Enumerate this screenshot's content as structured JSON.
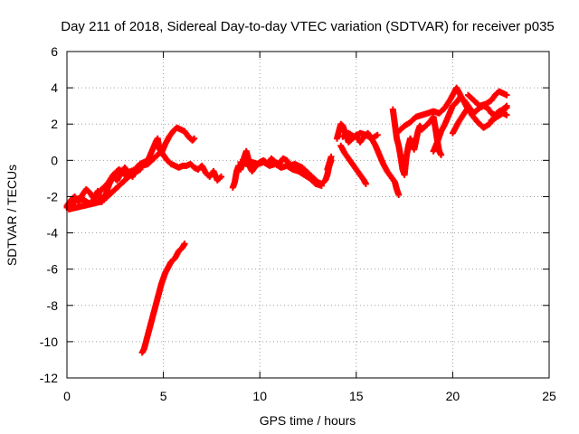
{
  "chart_data": {
    "type": "scatter",
    "title": "Day 211 of 2018, Sidereal Day-to-day VTEC variation (SDTVAR) for receiver p035",
    "xlabel": "GPS time / hours",
    "ylabel": "SDTVAR / TECUs",
    "xlim": [
      0,
      25
    ],
    "ylim": [
      -12,
      6
    ],
    "xticks": [
      0,
      5,
      10,
      15,
      20,
      25
    ],
    "yticks": [
      -12,
      -10,
      -8,
      -6,
      -4,
      -2,
      0,
      2,
      4,
      6
    ],
    "xtick_labels": [
      "0",
      "5",
      "10",
      "15",
      "20",
      "25"
    ],
    "ytick_labels": [
      "-12",
      "-10",
      "-8",
      "-6",
      "-4",
      "-2",
      "0",
      "2",
      "4",
      "6"
    ],
    "grid": true,
    "marker": "plus",
    "color": "#ff0000",
    "series": [
      {
        "name": "p035",
        "segments": [
          [
            [
              0.0,
              -2.5
            ],
            [
              0.2,
              -2.2
            ],
            [
              0.4,
              -2.0
            ],
            [
              0.6,
              -2.3
            ],
            [
              0.8,
              -1.9
            ],
            [
              1.0,
              -1.6
            ],
            [
              1.2,
              -1.8
            ],
            [
              1.4,
              -2.1
            ],
            [
              1.6,
              -1.7
            ],
            [
              1.8,
              -2.3
            ],
            [
              2.0,
              -1.9
            ],
            [
              2.2,
              -1.3
            ],
            [
              2.4,
              -0.9
            ],
            [
              2.6,
              -1.1
            ],
            [
              2.8,
              -0.7
            ],
            [
              3.0,
              -0.4
            ],
            [
              3.2,
              -0.7
            ],
            [
              3.4,
              -0.9
            ],
            [
              3.6,
              -0.4
            ],
            [
              3.8,
              -0.2
            ],
            [
              4.0,
              -0.1
            ],
            [
              4.2,
              0.0
            ],
            [
              4.4,
              0.5
            ],
            [
              4.6,
              1.0
            ],
            [
              4.7,
              1.2
            ],
            [
              4.8,
              0.6
            ],
            [
              5.0,
              0.3
            ],
            [
              5.2,
              0.0
            ],
            [
              5.4,
              -0.2
            ],
            [
              5.6,
              -0.3
            ],
            [
              5.8,
              -0.4
            ],
            [
              6.0,
              -0.3
            ],
            [
              6.2,
              -0.3
            ],
            [
              6.4,
              -0.2
            ],
            [
              6.6,
              -0.4
            ],
            [
              6.8,
              -0.5
            ],
            [
              7.0,
              -0.3
            ],
            [
              7.2,
              -0.7
            ],
            [
              7.4,
              -0.9
            ],
            [
              7.6,
              -0.6
            ],
            [
              7.8,
              -1.1
            ],
            [
              8.0,
              -0.9
            ]
          ],
          [
            [
              0.0,
              -2.6
            ],
            [
              0.3,
              -2.4
            ],
            [
              0.6,
              -2.1
            ],
            [
              0.9,
              -2.2
            ],
            [
              1.2,
              -2.4
            ],
            [
              1.5,
              -2.0
            ],
            [
              1.8,
              -1.6
            ],
            [
              2.1,
              -1.3
            ],
            [
              2.4,
              -0.8
            ],
            [
              2.7,
              -0.5
            ],
            [
              3.0,
              -0.8
            ],
            [
              3.3,
              -0.6
            ],
            [
              3.6,
              -0.5
            ],
            [
              3.9,
              -0.3
            ],
            [
              4.2,
              -0.2
            ],
            [
              4.5,
              0.1
            ],
            [
              4.8,
              0.4
            ]
          ],
          [
            [
              0.1,
              -2.7
            ],
            [
              0.5,
              -2.6
            ],
            [
              0.9,
              -2.5
            ],
            [
              1.3,
              -2.4
            ],
            [
              1.7,
              -2.3
            ],
            [
              2.0,
              -2.1
            ],
            [
              2.3,
              -1.8
            ],
            [
              2.6,
              -1.5
            ],
            [
              2.9,
              -1.2
            ],
            [
              3.2,
              -0.9
            ],
            [
              3.5,
              -0.7
            ],
            [
              3.8,
              -0.5
            ]
          ],
          [
            [
              4.9,
              0.4
            ],
            [
              5.1,
              0.9
            ],
            [
              5.3,
              1.3
            ],
            [
              5.5,
              1.6
            ],
            [
              5.7,
              1.8
            ],
            [
              5.9,
              1.7
            ],
            [
              6.1,
              1.6
            ],
            [
              6.3,
              1.3
            ],
            [
              6.5,
              1.1
            ],
            [
              6.6,
              1.2
            ]
          ],
          [
            [
              3.9,
              -10.6
            ],
            [
              4.0,
              -10.4
            ],
            [
              4.1,
              -10.0
            ],
            [
              4.2,
              -9.6
            ],
            [
              4.3,
              -9.2
            ],
            [
              4.4,
              -8.8
            ],
            [
              4.5,
              -8.4
            ],
            [
              4.6,
              -8.0
            ],
            [
              4.7,
              -7.6
            ],
            [
              4.8,
              -7.2
            ],
            [
              4.9,
              -6.8
            ],
            [
              5.0,
              -6.5
            ],
            [
              5.1,
              -6.2
            ],
            [
              5.2,
              -6.0
            ],
            [
              5.3,
              -5.8
            ],
            [
              5.4,
              -5.6
            ],
            [
              5.6,
              -5.4
            ],
            [
              5.8,
              -5.0
            ],
            [
              6.0,
              -4.8
            ],
            [
              6.1,
              -4.6
            ]
          ],
          [
            [
              8.6,
              -1.5
            ],
            [
              8.7,
              -1.2
            ],
            [
              8.8,
              -0.6
            ],
            [
              8.9,
              -0.3
            ],
            [
              9.0,
              -0.5
            ],
            [
              9.1,
              -0.2
            ],
            [
              9.2,
              0.2
            ],
            [
              9.3,
              0.5
            ],
            [
              9.4,
              0.1
            ],
            [
              9.5,
              -0.4
            ],
            [
              9.6,
              -0.6
            ],
            [
              9.8,
              -0.3
            ],
            [
              10.0,
              -0.1
            ],
            [
              10.2,
              0.0
            ],
            [
              10.4,
              -0.2
            ],
            [
              10.6,
              0.1
            ],
            [
              10.8,
              -0.1
            ],
            [
              11.0,
              -0.2
            ],
            [
              11.2,
              0.1
            ],
            [
              11.4,
              0.0
            ],
            [
              11.6,
              -0.3
            ],
            [
              11.8,
              -0.2
            ],
            [
              12.0,
              -0.3
            ],
            [
              12.2,
              -0.4
            ],
            [
              12.4,
              -0.6
            ],
            [
              12.6,
              -0.8
            ],
            [
              12.8,
              -1.0
            ],
            [
              13.0,
              -1.2
            ],
            [
              13.2,
              -1.3
            ],
            [
              13.4,
              -1.1
            ],
            [
              13.5,
              -0.8
            ],
            [
              13.6,
              -0.3
            ],
            [
              13.7,
              0.0
            ]
          ],
          [
            [
              9.0,
              -0.1
            ],
            [
              9.3,
              -0.2
            ],
            [
              9.6,
              -0.1
            ],
            [
              9.9,
              -0.2
            ],
            [
              10.2,
              -0.1
            ],
            [
              10.5,
              -0.3
            ],
            [
              10.8,
              -0.2
            ],
            [
              11.1,
              -0.4
            ],
            [
              11.4,
              -0.3
            ],
            [
              11.7,
              -0.5
            ],
            [
              12.0,
              -0.6
            ],
            [
              12.3,
              -0.8
            ],
            [
              12.6,
              -1.0
            ],
            [
              12.9,
              -1.3
            ],
            [
              13.2,
              -1.4
            ]
          ],
          [
            [
              13.5,
              -0.5
            ],
            [
              13.7,
              0.2
            ]
          ],
          [
            [
              14.0,
              1.2
            ],
            [
              14.1,
              1.6
            ],
            [
              14.2,
              2.0
            ],
            [
              14.3,
              1.9
            ],
            [
              14.4,
              1.6
            ],
            [
              14.5,
              1.3
            ],
            [
              14.6,
              1.0
            ],
            [
              14.8,
              1.2
            ],
            [
              15.0,
              1.4
            ],
            [
              15.2,
              1.0
            ],
            [
              15.4,
              1.3
            ],
            [
              15.6,
              1.5
            ],
            [
              15.8,
              1.2
            ],
            [
              16.0,
              0.8
            ],
            [
              16.2,
              0.3
            ],
            [
              16.4,
              -0.2
            ],
            [
              16.6,
              -0.6
            ],
            [
              16.8,
              -0.9
            ],
            [
              17.0,
              -1.2
            ],
            [
              17.1,
              -1.6
            ],
            [
              17.2,
              -1.9
            ]
          ],
          [
            [
              14.2,
              0.8
            ],
            [
              14.4,
              0.4
            ],
            [
              14.6,
              0.1
            ],
            [
              14.8,
              -0.2
            ],
            [
              15.0,
              -0.5
            ],
            [
              15.2,
              -0.8
            ],
            [
              15.4,
              -1.1
            ],
            [
              15.5,
              -1.3
            ]
          ],
          [
            [
              14.3,
              1.3
            ],
            [
              14.6,
              1.5
            ],
            [
              14.9,
              1.3
            ],
            [
              15.2,
              1.5
            ],
            [
              15.5,
              1.4
            ],
            [
              15.8,
              1.2
            ],
            [
              16.1,
              1.4
            ]
          ],
          [
            [
              16.9,
              2.8
            ],
            [
              17.0,
              2.0
            ],
            [
              17.1,
              1.2
            ],
            [
              17.2,
              0.8
            ],
            [
              17.3,
              0.2
            ],
            [
              17.4,
              -0.5
            ],
            [
              17.5,
              -0.8
            ],
            [
              17.6,
              0.2
            ],
            [
              17.7,
              0.8
            ],
            [
              17.8,
              1.2
            ],
            [
              17.9,
              0.9
            ],
            [
              18.0,
              0.6
            ],
            [
              18.1,
              1.1
            ],
            [
              18.2,
              1.6
            ],
            [
              18.3,
              1.9
            ],
            [
              18.4,
              1.7
            ],
            [
              18.6,
              1.9
            ],
            [
              18.8,
              2.1
            ],
            [
              19.0,
              2.4
            ],
            [
              19.1,
              1.8
            ],
            [
              19.2,
              1.1
            ],
            [
              19.3,
              0.5
            ],
            [
              19.4,
              0.3
            ]
          ],
          [
            [
              17.2,
              1.6
            ],
            [
              17.5,
              1.9
            ],
            [
              17.8,
              2.1
            ],
            [
              18.1,
              2.4
            ],
            [
              18.4,
              2.5
            ],
            [
              18.7,
              2.6
            ],
            [
              19.0,
              2.7
            ],
            [
              19.3,
              2.6
            ],
            [
              19.6,
              2.9
            ],
            [
              19.9,
              3.4
            ],
            [
              20.1,
              3.8
            ],
            [
              20.2,
              4.0
            ],
            [
              20.4,
              3.6
            ],
            [
              20.6,
              3.2
            ],
            [
              20.8,
              2.8
            ],
            [
              21.0,
              2.6
            ],
            [
              21.2,
              2.7
            ],
            [
              21.4,
              2.9
            ],
            [
              21.6,
              3.0
            ],
            [
              21.8,
              2.9
            ],
            [
              22.0,
              2.6
            ],
            [
              22.2,
              2.5
            ],
            [
              22.4,
              2.7
            ],
            [
              22.6,
              2.8
            ],
            [
              22.8,
              2.9
            ]
          ],
          [
            [
              19.0,
              0.5
            ],
            [
              19.2,
              1.0
            ],
            [
              19.4,
              1.6
            ],
            [
              19.6,
              2.0
            ],
            [
              19.8,
              2.5
            ],
            [
              20.0,
              3.0
            ],
            [
              20.2,
              3.2
            ],
            [
              20.4,
              3.5
            ],
            [
              20.6,
              3.3
            ],
            [
              20.8,
              3.0
            ],
            [
              21.0,
              2.7
            ]
          ],
          [
            [
              20.0,
              1.5
            ],
            [
              20.3,
              2.1
            ],
            [
              20.6,
              2.6
            ],
            [
              20.8,
              2.9
            ],
            [
              21.0,
              2.5
            ],
            [
              21.3,
              2.1
            ],
            [
              21.6,
              1.8
            ],
            [
              21.9,
              2.0
            ],
            [
              22.2,
              2.4
            ],
            [
              22.5,
              2.7
            ],
            [
              22.8,
              3.0
            ]
          ],
          [
            [
              20.8,
              3.6
            ],
            [
              21.1,
              3.3
            ],
            [
              21.4,
              3.0
            ],
            [
              21.7,
              3.1
            ],
            [
              22.0,
              3.3
            ],
            [
              22.2,
              3.6
            ],
            [
              22.4,
              3.8
            ],
            [
              22.6,
              3.7
            ],
            [
              22.8,
              3.6
            ]
          ],
          [
            [
              22.0,
              2.2
            ],
            [
              22.3,
              2.4
            ],
            [
              22.6,
              2.6
            ],
            [
              22.8,
              2.5
            ]
          ]
        ]
      }
    ]
  }
}
